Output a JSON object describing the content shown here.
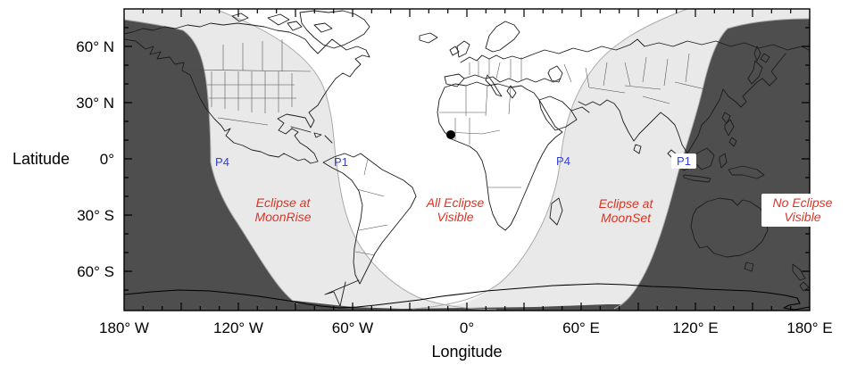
{
  "figure": {
    "description": "Lunar eclipse visibility world map"
  },
  "axes": {
    "x_title": "Longitude",
    "y_title": "Latitude",
    "x_ticks": [
      "180° W",
      "120° W",
      "60° W",
      "0°",
      "60° E",
      "120° E",
      "180° E"
    ],
    "y_ticks": [
      "60° N",
      "30° N",
      "0°",
      "30° S",
      "60° S"
    ]
  },
  "zones": {
    "moonrise": {
      "l1": "Eclipse at",
      "l2": "MoonRise"
    },
    "all_visible": {
      "l1": "All Eclipse",
      "l2": "Visible"
    },
    "moonset": {
      "l1": "Eclipse at",
      "l2": "MoonSet"
    },
    "no_eclipse": {
      "l1": "No Eclipse",
      "l2": "Visible"
    }
  },
  "contacts": {
    "west_p4": "P4",
    "west_p1": "P1",
    "east_p4": "P4",
    "east_p1": "P1"
  },
  "colors": {
    "no_eclipse_fill": "#4e4e4e",
    "partial_zone_fill": "#e9e9e9",
    "all_visible_fill": "#ffffff",
    "zone_text": "#dd3322",
    "contact_text": "#3640cf"
  }
}
